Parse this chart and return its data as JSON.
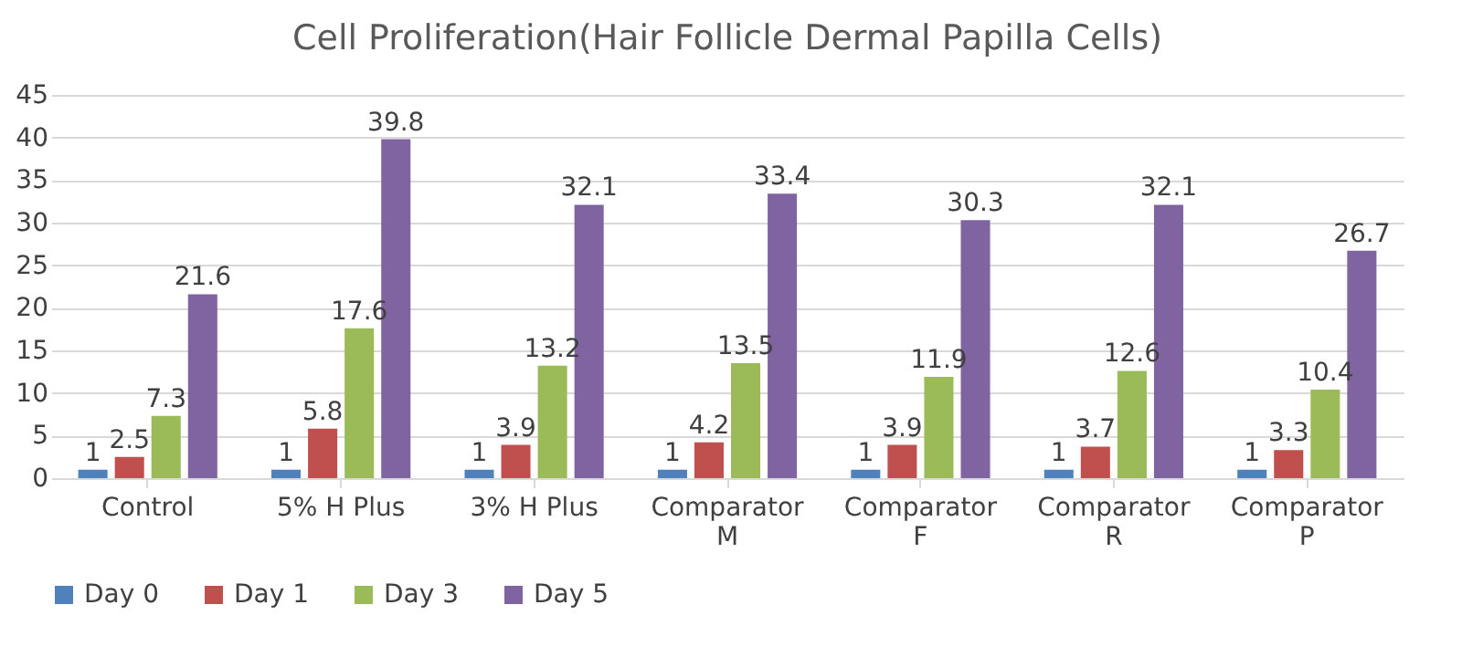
{
  "chart_data": {
    "type": "bar",
    "title": "Cell Proliferation(Hair Follicle Dermal Papilla Cells)",
    "categories": [
      "Control",
      "5% H Plus",
      "3% H Plus",
      "Comparator M",
      "Comparator F",
      "Comparator R",
      "Comparator P"
    ],
    "series": [
      {
        "name": "Day 0",
        "color": "#4f81bd",
        "values": [
          1,
          1,
          1,
          1,
          1,
          1,
          1
        ]
      },
      {
        "name": "Day 1",
        "color": "#c0504d",
        "values": [
          2.5,
          5.8,
          3.9,
          4.2,
          3.9,
          3.7,
          3.3
        ]
      },
      {
        "name": "Day 3",
        "color": "#9bbb59",
        "values": [
          7.3,
          17.6,
          13.2,
          13.5,
          11.9,
          12.6,
          10.4
        ]
      },
      {
        "name": "Day 5",
        "color": "#8064a2",
        "values": [
          21.6,
          39.8,
          32.1,
          33.4,
          30.3,
          32.1,
          26.7
        ]
      }
    ],
    "ylim": [
      0,
      45
    ],
    "yticks": [
      0,
      5,
      10,
      15,
      20,
      25,
      30,
      35,
      40,
      45
    ],
    "grid": "y",
    "legend": "bottom",
    "data_labels": true
  }
}
